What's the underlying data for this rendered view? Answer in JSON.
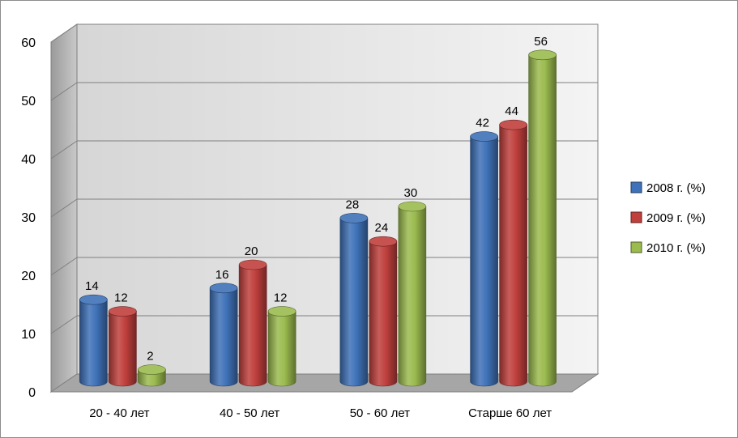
{
  "chart_data": {
    "type": "bar",
    "title": "",
    "xlabel": "",
    "ylabel": "",
    "categories": [
      "20 - 40 лет",
      "40 - 50 лет",
      "50 - 60 лет",
      "Старше 60 лет"
    ],
    "series": [
      {
        "name": "2008 г. (%)",
        "values": [
          14,
          16,
          28,
          42
        ],
        "color": "#3f72b8"
      },
      {
        "name": "2009 г. (%)",
        "values": [
          12,
          20,
          24,
          44
        ],
        "color": "#c0403d"
      },
      {
        "name": "2010 г. (%)",
        "values": [
          2,
          12,
          30,
          56
        ],
        "color": "#9bbb4f"
      }
    ],
    "ylim": [
      0,
      60
    ],
    "yticks": [
      0,
      10,
      20,
      30,
      40,
      50,
      60
    ],
    "grid": true,
    "legend": "right",
    "style": "3d-cylinder"
  }
}
